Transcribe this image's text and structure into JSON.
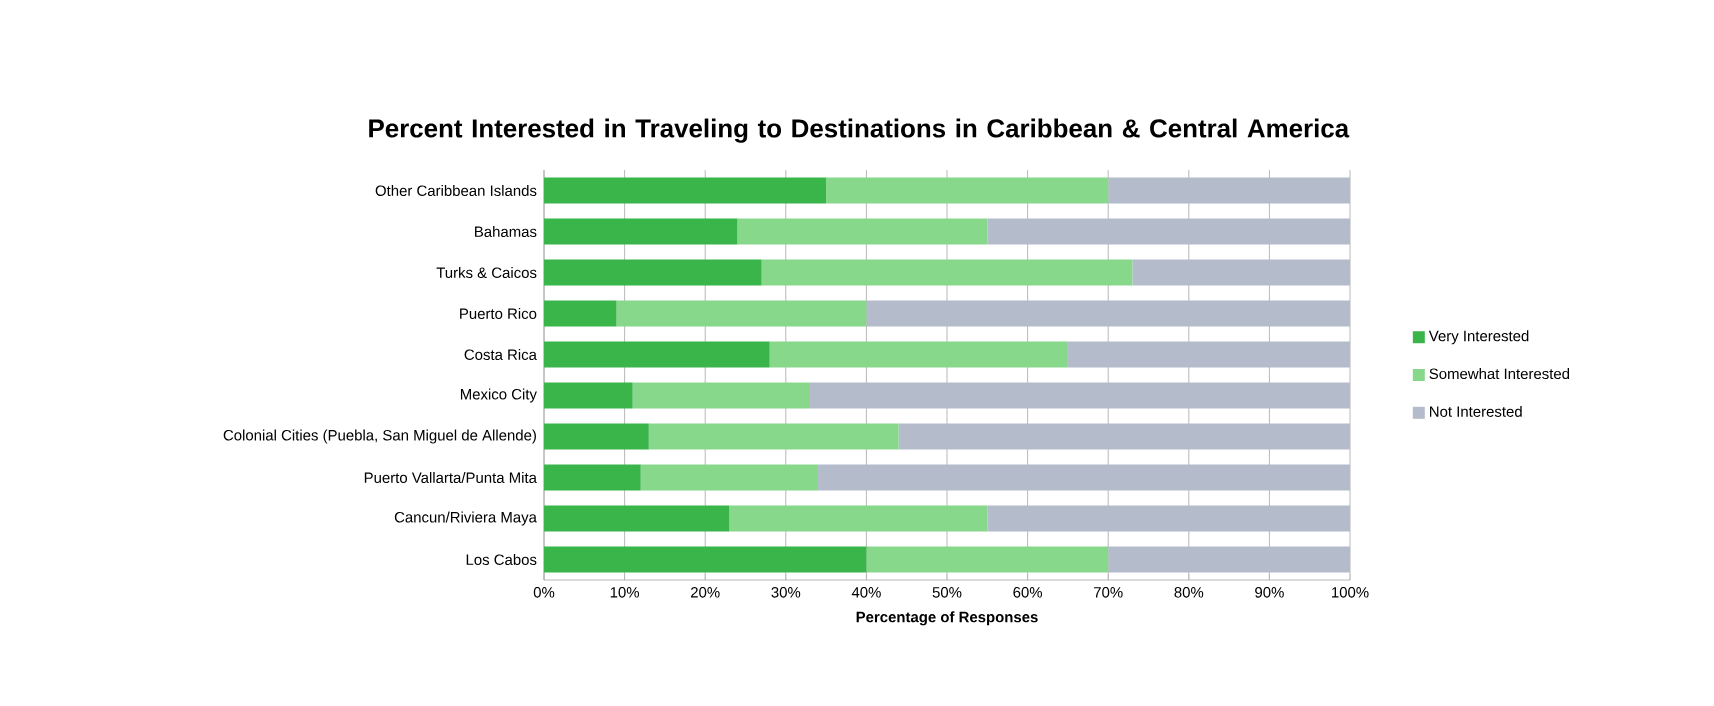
{
  "chart_data": {
    "type": "bar",
    "orientation": "horizontal",
    "stacked": true,
    "title": "Percent Interested in Traveling to Destinations in Caribbean & Central America",
    "xlabel": "Percentage of Responses",
    "categories": [
      "Other Caribbean Islands",
      "Bahamas",
      "Turks & Caicos",
      "Puerto Rico",
      "Costa Rica",
      "Mexico City",
      "Colonial Cities (Puebla, San Miguel de Allende)",
      "Puerto Vallarta/Punta Mita",
      "Cancun/Riviera Maya",
      "Los Cabos"
    ],
    "series": [
      {
        "name": "Very Interested",
        "color": "#39b54a",
        "values": [
          35,
          24,
          27,
          9,
          28,
          11,
          13,
          12,
          23,
          40
        ]
      },
      {
        "name": "Somewhat Interested",
        "color": "#88d88c",
        "values": [
          35,
          31,
          46,
          31,
          37,
          22,
          31,
          22,
          32,
          30
        ]
      },
      {
        "name": "Not Interested",
        "color": "#b4bccc",
        "values": [
          30,
          45,
          27,
          60,
          35,
          67,
          56,
          66,
          45,
          30
        ]
      }
    ],
    "xlim": [
      0,
      100
    ],
    "xticks": [
      {
        "value": 0,
        "label": "0%"
      },
      {
        "value": 10,
        "label": "10%"
      },
      {
        "value": 20,
        "label": "20%"
      },
      {
        "value": 30,
        "label": "30%"
      },
      {
        "value": 40,
        "label": "40%"
      },
      {
        "value": 50,
        "label": "50%"
      },
      {
        "value": 60,
        "label": "60%"
      },
      {
        "value": 70,
        "label": "70%"
      },
      {
        "value": 80,
        "label": "80%"
      },
      {
        "value": 90,
        "label": "90%"
      },
      {
        "value": 100,
        "label": "100%"
      }
    ],
    "grid": "x",
    "legend": "right"
  }
}
